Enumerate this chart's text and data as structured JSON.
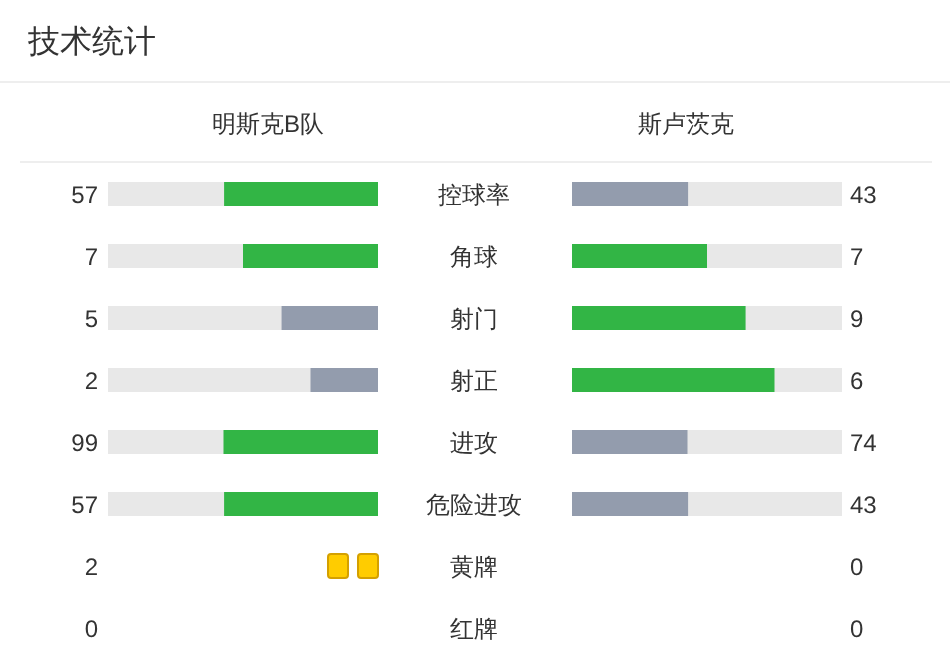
{
  "chart_data": [
    {
      "type": "other",
      "title": "技术统计",
      "categories": [
        "控球率",
        "角球",
        "射门",
        "射正",
        "进攻",
        "危险进攻"
      ],
      "data_labels": true,
      "series": [
        {
          "name": "明斯克B队",
          "values": [
            57,
            7,
            5,
            2,
            99,
            57
          ],
          "colors": [
            "#32b545",
            "#32b545",
            "#939cad",
            "#939cad",
            "#32b545",
            "#32b545"
          ]
        },
        {
          "name": "斯卢茨克",
          "values": [
            43,
            7,
            9,
            6,
            74,
            43
          ],
          "colors": [
            "#939cad",
            "#32b545",
            "#32b545",
            "#32b545",
            "#939cad",
            "#939cad"
          ]
        }
      ]
    },
    {
      "type": "other",
      "categories": [
        "黄牌",
        "红牌"
      ],
      "data_labels": true,
      "series": [
        {
          "values": [
            2,
            0
          ],
          "colors": [
            "#ffcc00",
            null
          ]
        },
        {
          "values": [
            0,
            0
          ]
        }
      ]
    }
  ]
}
